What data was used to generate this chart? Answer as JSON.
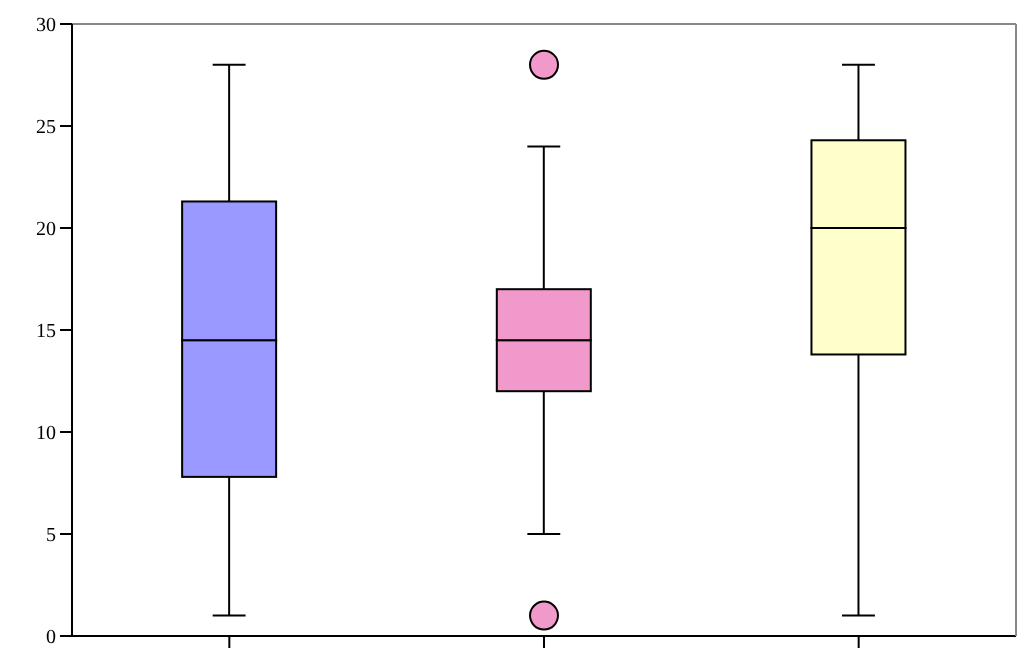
{
  "chart_data": {
    "type": "box",
    "categories": [
      null,
      null,
      null
    ],
    "boxes": [
      {
        "low": 1,
        "q1": 7.8,
        "median": 14.5,
        "q3": 21.3,
        "high": 28
      },
      {
        "low": 5,
        "q1": 12,
        "median": 14.5,
        "q3": 17,
        "high": 24,
        "outliers": [
          1,
          28
        ]
      },
      {
        "low": 1,
        "q1": 13.8,
        "median": 20,
        "q3": 24.3,
        "high": 28
      }
    ],
    "colors": [
      "#9999ff",
      "#f299cc",
      "#ffffcc"
    ],
    "ylim": [
      0,
      30
    ],
    "yticks": [
      0,
      5,
      10,
      15,
      20,
      25,
      30
    ],
    "grid": false,
    "legend": false
  }
}
